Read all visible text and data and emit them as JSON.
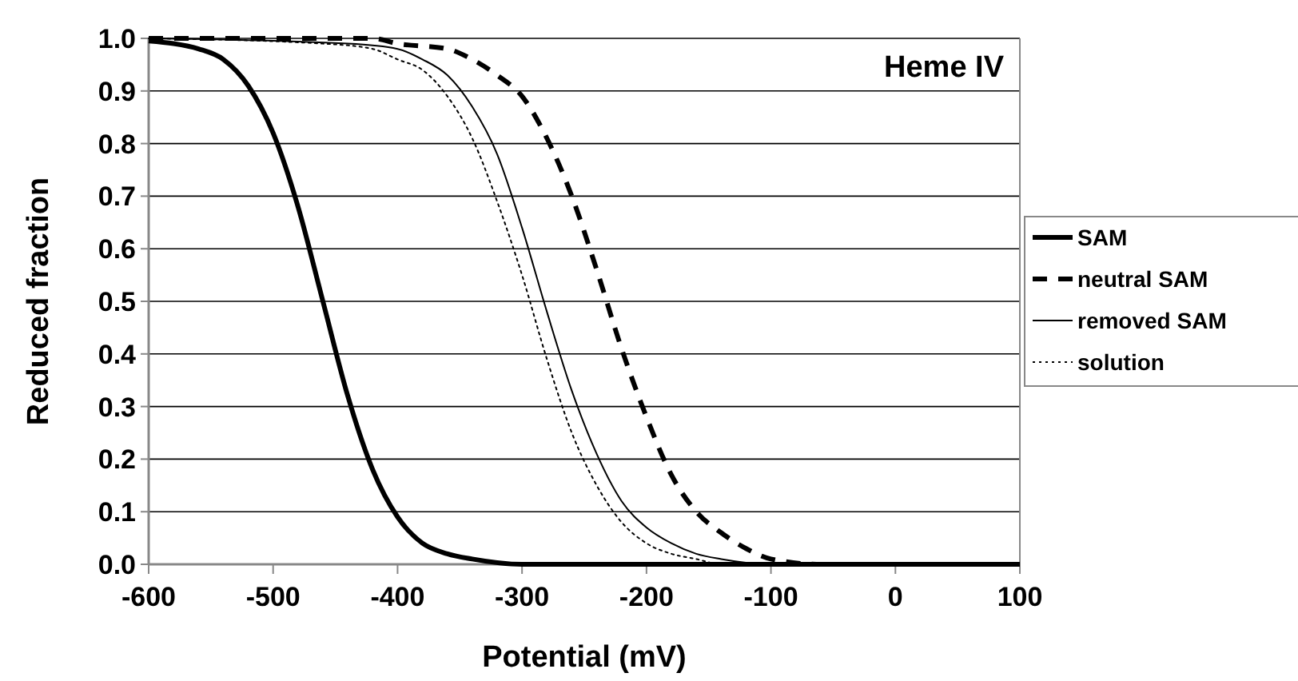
{
  "chart_data": {
    "type": "line",
    "title": "Heme IV",
    "xlabel": "Potential (mV)",
    "ylabel": "Reduced fraction",
    "xlim": [
      -600,
      100
    ],
    "xticks": [
      -600,
      -500,
      -400,
      -300,
      -200,
      -100,
      0,
      100
    ],
    "ylim": [
      0,
      1
    ],
    "yticks": [
      {
        "value": 0,
        "label": "0.0"
      },
      {
        "value": 0.1,
        "label": "0.1"
      },
      {
        "value": 0.2,
        "label": "0.2"
      },
      {
        "value": 0.3,
        "label": "0.3"
      },
      {
        "value": 0.4,
        "label": "0.4"
      },
      {
        "value": 0.5,
        "label": "0.5"
      },
      {
        "value": 0.6,
        "label": "0.6"
      },
      {
        "value": 0.7,
        "label": "0.7"
      },
      {
        "value": 0.8,
        "label": "0.8"
      },
      {
        "value": 0.9,
        "label": "0.9"
      },
      {
        "value": 1,
        "label": "1.0"
      }
    ],
    "grid": "y",
    "legend": "right",
    "series": [
      {
        "name": "SAM",
        "color": "#000000",
        "line_style": "solid",
        "x": [
          -600,
          -580,
          -560,
          -540,
          -520,
          -500,
          -480,
          -460,
          -440,
          -420,
          -400,
          -380,
          -360,
          -340,
          -300,
          100
        ],
        "values": [
          0.995,
          0.99,
          0.98,
          0.96,
          0.91,
          0.82,
          0.68,
          0.5,
          0.32,
          0.18,
          0.09,
          0.04,
          0.02,
          0.01,
          0,
          0
        ]
      },
      {
        "name": "neutral SAM",
        "color": "#000000",
        "line_style": "dashed",
        "x": [
          -600,
          -420,
          -400,
          -360,
          -340,
          -320,
          -300,
          -280,
          -260,
          -240,
          -220,
          -200,
          -180,
          -160,
          -140,
          -120,
          -100,
          -60,
          100
        ],
        "values": [
          1,
          1,
          0.99,
          0.98,
          0.96,
          0.93,
          0.89,
          0.81,
          0.7,
          0.56,
          0.41,
          0.28,
          0.17,
          0.1,
          0.06,
          0.03,
          0.01,
          0,
          0
        ]
      },
      {
        "name": "removed SAM",
        "color": "#000000",
        "line_style": "solid",
        "x": [
          -600,
          -440,
          -400,
          -380,
          -360,
          -340,
          -320,
          -300,
          -280,
          -260,
          -240,
          -220,
          -200,
          -180,
          -160,
          -140,
          -100,
          100
        ],
        "values": [
          1,
          0.99,
          0.98,
          0.96,
          0.93,
          0.87,
          0.78,
          0.64,
          0.48,
          0.33,
          0.21,
          0.12,
          0.07,
          0.04,
          0.02,
          0.01,
          0,
          0
        ]
      },
      {
        "name": "solution",
        "color": "#000000",
        "line_style": "dotted",
        "x": [
          -600,
          -460,
          -420,
          -400,
          -380,
          -360,
          -340,
          -320,
          -300,
          -280,
          -260,
          -240,
          -220,
          -200,
          -180,
          -160,
          -140,
          100
        ],
        "values": [
          1,
          0.99,
          0.98,
          0.96,
          0.94,
          0.89,
          0.81,
          0.69,
          0.55,
          0.39,
          0.25,
          0.15,
          0.08,
          0.04,
          0.02,
          0.01,
          0,
          0
        ]
      }
    ]
  }
}
